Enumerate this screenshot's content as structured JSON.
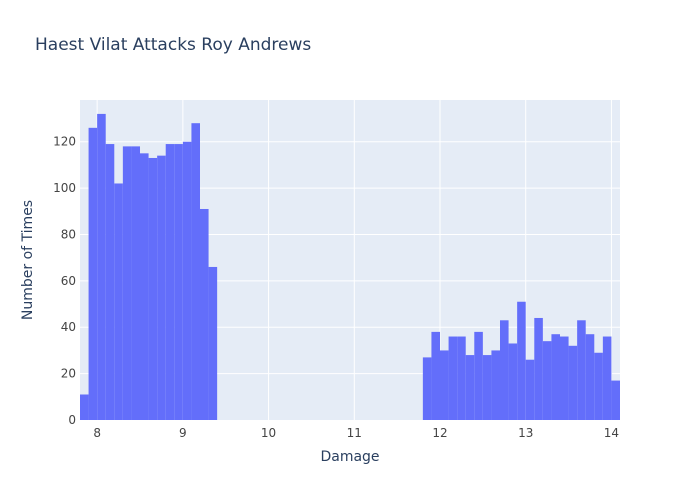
{
  "chart_data": {
    "type": "bar",
    "title": "Haest Vilat Attacks Roy Andrews",
    "xlabel": "Damage",
    "ylabel": "Number of Times",
    "xlim": [
      7.8,
      14.1
    ],
    "ylim": [
      0,
      138
    ],
    "bin_width": 0.1,
    "x_ticks": [
      "8",
      "9",
      "10",
      "11",
      "12",
      "13",
      "14"
    ],
    "y_ticks": [
      "0",
      "20",
      "40",
      "60",
      "80",
      "100",
      "120"
    ],
    "grid": true,
    "bins": [
      {
        "x": 7.8,
        "y": 11
      },
      {
        "x": 7.9,
        "y": 126
      },
      {
        "x": 8.0,
        "y": 132
      },
      {
        "x": 8.1,
        "y": 119
      },
      {
        "x": 8.2,
        "y": 102
      },
      {
        "x": 8.3,
        "y": 118
      },
      {
        "x": 8.4,
        "y": 118
      },
      {
        "x": 8.5,
        "y": 115
      },
      {
        "x": 8.6,
        "y": 113
      },
      {
        "x": 8.7,
        "y": 114
      },
      {
        "x": 8.8,
        "y": 119
      },
      {
        "x": 8.9,
        "y": 119
      },
      {
        "x": 9.0,
        "y": 120
      },
      {
        "x": 9.1,
        "y": 128
      },
      {
        "x": 9.2,
        "y": 91
      },
      {
        "x": 9.3,
        "y": 66
      },
      {
        "x": 11.8,
        "y": 27
      },
      {
        "x": 11.9,
        "y": 38
      },
      {
        "x": 12.0,
        "y": 30
      },
      {
        "x": 12.1,
        "y": 36
      },
      {
        "x": 12.2,
        "y": 36
      },
      {
        "x": 12.3,
        "y": 28
      },
      {
        "x": 12.4,
        "y": 38
      },
      {
        "x": 12.5,
        "y": 28
      },
      {
        "x": 12.6,
        "y": 30
      },
      {
        "x": 12.7,
        "y": 43
      },
      {
        "x": 12.8,
        "y": 33
      },
      {
        "x": 12.9,
        "y": 51
      },
      {
        "x": 13.0,
        "y": 26
      },
      {
        "x": 13.1,
        "y": 44
      },
      {
        "x": 13.2,
        "y": 34
      },
      {
        "x": 13.3,
        "y": 37
      },
      {
        "x": 13.4,
        "y": 36
      },
      {
        "x": 13.5,
        "y": 32
      },
      {
        "x": 13.6,
        "y": 43
      },
      {
        "x": 13.7,
        "y": 37
      },
      {
        "x": 13.8,
        "y": 29
      },
      {
        "x": 13.9,
        "y": 36
      },
      {
        "x": 14.0,
        "y": 17
      }
    ],
    "colors": {
      "bar": "#636efa",
      "plot_bg": "#e5ecf6",
      "grid": "#ffffff",
      "text": "#2a3f5f",
      "tick_text": "#444444"
    }
  }
}
